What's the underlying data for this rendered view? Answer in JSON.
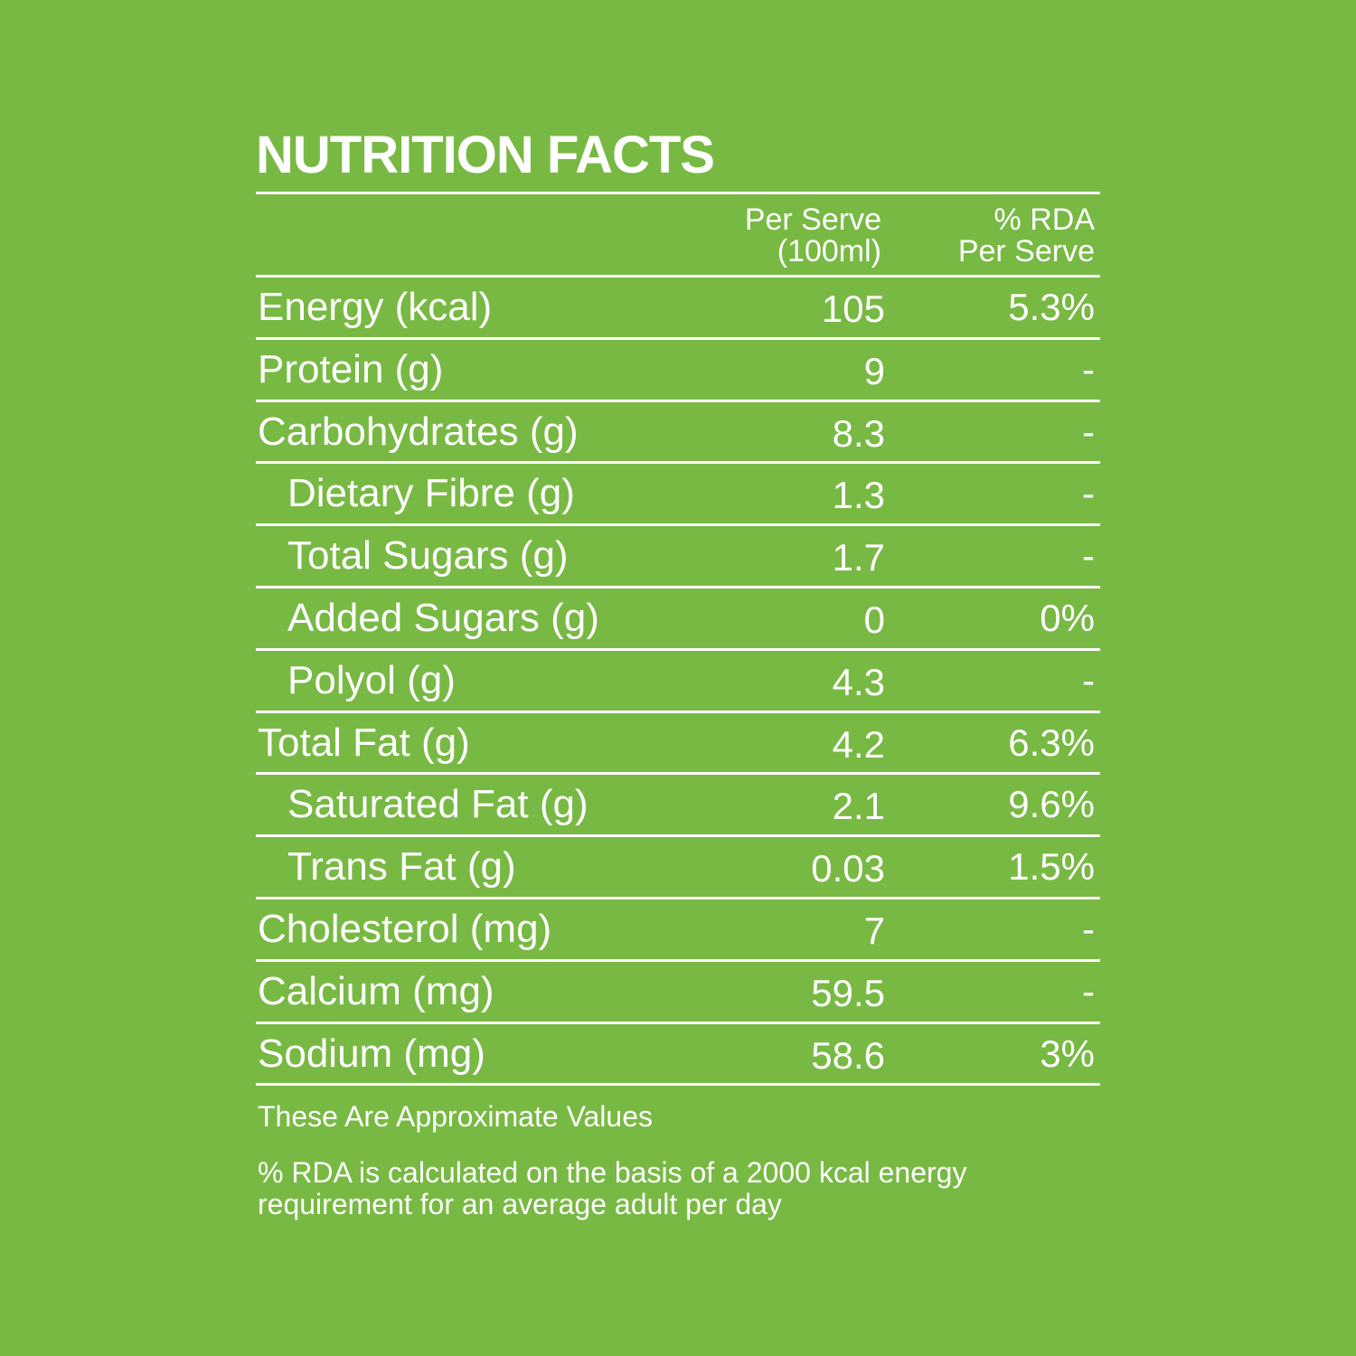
{
  "title": "NUTRITION FACTS",
  "columns": {
    "per_serve_line1": "Per Serve",
    "per_serve_line2": "(100ml)",
    "rda_line1": "% RDA",
    "rda_line2": "Per Serve"
  },
  "rows": [
    {
      "label": "Energy (kcal)",
      "value": "105",
      "rda": "5.3%",
      "indent": 0
    },
    {
      "label": "Protein (g)",
      "value": "9",
      "rda": "-",
      "indent": 0
    },
    {
      "label": "Carbohydrates (g)",
      "value": "8.3",
      "rda": "-",
      "indent": 0
    },
    {
      "label": "Dietary Fibre (g)",
      "value": "1.3",
      "rda": "-",
      "indent": 1
    },
    {
      "label": "Total Sugars (g)",
      "value": "1.7",
      "rda": "-",
      "indent": 1
    },
    {
      "label": "Added Sugars (g)",
      "value": "0",
      "rda": "0%",
      "indent": 1
    },
    {
      "label": "Polyol (g)",
      "value": "4.3",
      "rda": "-",
      "indent": 1
    },
    {
      "label": "Total Fat (g)",
      "value": "4.2",
      "rda": "6.3%",
      "indent": 0
    },
    {
      "label": "Saturated Fat (g)",
      "value": "2.1",
      "rda": "9.6%",
      "indent": 1
    },
    {
      "label": "Trans Fat (g)",
      "value": "0.03",
      "rda": "1.5%",
      "indent": 1
    },
    {
      "label": "Cholesterol (mg)",
      "value": "7",
      "rda": "-",
      "indent": 0
    },
    {
      "label": "Calcium (mg)",
      "value": "59.5",
      "rda": "-",
      "indent": 0
    },
    {
      "label": "Sodium (mg)",
      "value": "58.6",
      "rda": "3%",
      "indent": 0
    }
  ],
  "notes": {
    "approx": "These Are Approximate Values",
    "rda_line1": "% RDA is calculated on the basis of a 2000 kcal energy",
    "rda_line2": "requirement for an average adult per day"
  },
  "colors": {
    "background": "#78b943",
    "text": "#ffffff"
  }
}
